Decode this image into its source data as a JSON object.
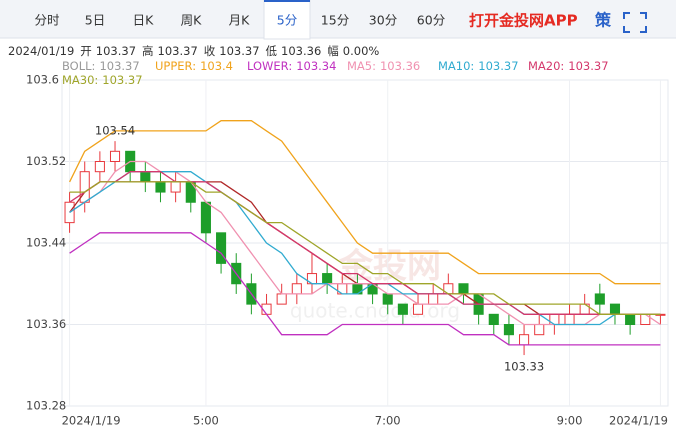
{
  "tabs": {
    "items": [
      "分时",
      "5日",
      "日K",
      "周K",
      "月K",
      "5分",
      "15分",
      "30分",
      "60分"
    ],
    "selected": 5,
    "brand": "打开金投网APP",
    "strategy": "策"
  },
  "info": {
    "date": "2024/01/19",
    "items": [
      {
        "label": "开",
        "value": 103.37
      },
      {
        "label": "高",
        "value": 103.37
      },
      {
        "label": "收",
        "value": 103.37
      },
      {
        "label": "低",
        "value": 103.36
      },
      {
        "label": "幅",
        "value": 0,
        "value_label": "0.00%"
      }
    ]
  },
  "watermark": {
    "logo": "金投网",
    "url": "quote.cngold.org"
  },
  "chart_data": {
    "type": "candlestick",
    "ylim": [
      103.28,
      103.6
    ],
    "yticks": [
      103.28,
      103.36,
      103.44,
      103.52,
      103.6
    ],
    "xticks": [
      {
        "value": 0,
        "label": "2024/1/19"
      },
      {
        "value": 9,
        "label": "5:00"
      },
      {
        "value": 21,
        "label": "7:00"
      },
      {
        "value": 33,
        "label": "9:00"
      },
      {
        "value": 39,
        "label": "2024/1/19"
      }
    ],
    "up_color": "#e8383d",
    "down_color": "#1e9e2a",
    "grid": true,
    "high_label": 103.54,
    "low_label": 103.33,
    "candles": [
      [
        103.46,
        103.49,
        103.45,
        103.48
      ],
      [
        103.48,
        103.52,
        103.47,
        103.51
      ],
      [
        103.51,
        103.53,
        103.5,
        103.52
      ],
      [
        103.52,
        103.54,
        103.51,
        103.53
      ],
      [
        103.53,
        103.53,
        103.5,
        103.51
      ],
      [
        103.51,
        103.52,
        103.49,
        103.5
      ],
      [
        103.5,
        103.51,
        103.48,
        103.49
      ],
      [
        103.49,
        103.51,
        103.48,
        103.5
      ],
      [
        103.5,
        103.5,
        103.47,
        103.48
      ],
      [
        103.48,
        103.48,
        103.44,
        103.45
      ],
      [
        103.45,
        103.45,
        103.41,
        103.42
      ],
      [
        103.42,
        103.43,
        103.39,
        103.4
      ],
      [
        103.4,
        103.41,
        103.37,
        103.38
      ],
      [
        103.37,
        103.39,
        103.37,
        103.38
      ],
      [
        103.38,
        103.4,
        103.38,
        103.39
      ],
      [
        103.39,
        103.41,
        103.38,
        103.4
      ],
      [
        103.4,
        103.43,
        103.39,
        103.41
      ],
      [
        103.41,
        103.42,
        103.39,
        103.4
      ],
      [
        103.39,
        103.41,
        103.39,
        103.4
      ],
      [
        103.4,
        103.41,
        103.39,
        103.39
      ],
      [
        103.4,
        103.4,
        103.38,
        103.39
      ],
      [
        103.39,
        103.39,
        103.37,
        103.38
      ],
      [
        103.38,
        103.38,
        103.36,
        103.37
      ],
      [
        103.37,
        103.39,
        103.37,
        103.38
      ],
      [
        103.38,
        103.4,
        103.38,
        103.39
      ],
      [
        103.39,
        103.41,
        103.39,
        103.4
      ],
      [
        103.4,
        103.4,
        103.38,
        103.39
      ],
      [
        103.39,
        103.39,
        103.36,
        103.37
      ],
      [
        103.37,
        103.37,
        103.35,
        103.36
      ],
      [
        103.36,
        103.37,
        103.34,
        103.35
      ],
      [
        103.34,
        103.36,
        103.33,
        103.35
      ],
      [
        103.35,
        103.37,
        103.35,
        103.36
      ],
      [
        103.36,
        103.37,
        103.35,
        103.37
      ],
      [
        103.36,
        103.38,
        103.36,
        103.37
      ],
      [
        103.37,
        103.39,
        103.37,
        103.38
      ],
      [
        103.39,
        103.4,
        103.37,
        103.38
      ],
      [
        103.38,
        103.38,
        103.36,
        103.37
      ],
      [
        103.37,
        103.37,
        103.35,
        103.36
      ],
      [
        103.36,
        103.37,
        103.36,
        103.37
      ],
      [
        103.37,
        103.37,
        103.36,
        103.37
      ]
    ],
    "series": [
      {
        "name": "BOLL:",
        "last": 103.37,
        "color": "#999999",
        "line_color": "#b02828",
        "values": [
          103.47,
          103.49,
          103.5,
          103.5,
          103.5,
          103.5,
          103.5,
          103.5,
          103.5,
          103.5,
          103.5,
          103.49,
          103.48,
          103.46,
          103.45,
          103.44,
          103.43,
          103.42,
          103.41,
          103.4,
          103.4,
          103.4,
          103.4,
          103.39,
          103.39,
          103.39,
          103.39,
          103.38,
          103.38,
          103.38,
          103.38,
          103.37,
          103.37,
          103.37,
          103.37,
          103.37,
          103.37,
          103.37,
          103.37,
          103.37
        ]
      },
      {
        "name": "UPPER:",
        "last": 103.4,
        "color": "#f0a31c",
        "values": [
          103.5,
          103.53,
          103.54,
          103.55,
          103.55,
          103.55,
          103.55,
          103.55,
          103.55,
          103.55,
          103.56,
          103.56,
          103.56,
          103.55,
          103.54,
          103.52,
          103.5,
          103.48,
          103.46,
          103.44,
          103.43,
          103.43,
          103.43,
          103.43,
          103.43,
          103.43,
          103.42,
          103.41,
          103.41,
          103.41,
          103.41,
          103.41,
          103.41,
          103.41,
          103.41,
          103.41,
          103.4,
          103.4,
          103.4,
          103.4
        ]
      },
      {
        "name": "LOWER:",
        "last": 103.34,
        "color": "#c030c0",
        "values": [
          103.43,
          103.44,
          103.45,
          103.45,
          103.45,
          103.45,
          103.45,
          103.45,
          103.45,
          103.44,
          103.43,
          103.41,
          103.39,
          103.37,
          103.35,
          103.35,
          103.35,
          103.35,
          103.36,
          103.36,
          103.36,
          103.36,
          103.36,
          103.36,
          103.36,
          103.36,
          103.35,
          103.35,
          103.35,
          103.34,
          103.34,
          103.34,
          103.34,
          103.34,
          103.34,
          103.34,
          103.34,
          103.34,
          103.34,
          103.34
        ]
      },
      {
        "name": "MA5:",
        "last": 103.36,
        "color": "#f091b0",
        "values": [
          103.47,
          103.48,
          103.49,
          103.51,
          103.52,
          103.52,
          103.51,
          103.51,
          103.5,
          103.48,
          103.47,
          103.45,
          103.43,
          103.41,
          103.39,
          103.39,
          103.39,
          103.4,
          103.4,
          103.4,
          103.4,
          103.39,
          103.39,
          103.38,
          103.38,
          103.38,
          103.39,
          103.39,
          103.38,
          103.37,
          103.36,
          103.36,
          103.36,
          103.36,
          103.36,
          103.37,
          103.37,
          103.37,
          103.37,
          103.36
        ]
      },
      {
        "name": "MA10:",
        "last": 103.37,
        "color": "#31abd0",
        "values": [
          103.47,
          103.48,
          103.49,
          103.5,
          103.51,
          103.51,
          103.51,
          103.51,
          103.51,
          103.5,
          103.49,
          103.48,
          103.46,
          103.44,
          103.43,
          103.41,
          103.4,
          103.4,
          103.39,
          103.39,
          103.4,
          103.4,
          103.39,
          103.39,
          103.39,
          103.39,
          103.38,
          103.38,
          103.38,
          103.38,
          103.37,
          103.37,
          103.36,
          103.36,
          103.36,
          103.36,
          103.37,
          103.37,
          103.37,
          103.37
        ]
      },
      {
        "name": "MA20:",
        "last": 103.37,
        "color": "#d4386c",
        "values": [
          103.48,
          103.49,
          103.5,
          103.5,
          103.51,
          103.51,
          103.51,
          103.5,
          103.5,
          103.5,
          103.49,
          103.48,
          103.47,
          103.46,
          103.45,
          103.44,
          103.43,
          103.42,
          103.41,
          103.41,
          103.4,
          103.4,
          103.4,
          103.39,
          103.39,
          103.39,
          103.38,
          103.38,
          103.38,
          103.38,
          103.37,
          103.37,
          103.37,
          103.37,
          103.37,
          103.37,
          103.37,
          103.37,
          103.37,
          103.37
        ]
      },
      {
        "name": "MA30:",
        "last": 103.37,
        "color": "#9fa52a",
        "values": [
          103.49,
          103.49,
          103.5,
          103.5,
          103.5,
          103.5,
          103.5,
          103.5,
          103.5,
          103.49,
          103.49,
          103.48,
          103.47,
          103.46,
          103.46,
          103.45,
          103.44,
          103.43,
          103.42,
          103.42,
          103.41,
          103.41,
          103.4,
          103.4,
          103.4,
          103.39,
          103.39,
          103.39,
          103.39,
          103.38,
          103.38,
          103.38,
          103.38,
          103.38,
          103.38,
          103.37,
          103.37,
          103.37,
          103.37,
          103.37
        ]
      }
    ]
  }
}
